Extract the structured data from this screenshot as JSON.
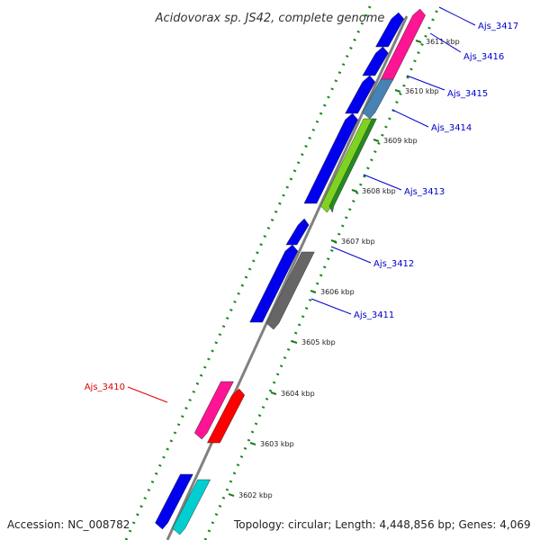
{
  "title": "Acidovorax sp. JS42, complete genome",
  "footer": {
    "accession": "Accession: NC_008782",
    "topology": "Topology: circular; Length: 4,448,856 bp; Genes: 4,069"
  },
  "colors": {
    "backbone": "#808080",
    "dotted_ring": "#1a8a1a",
    "tick": "#1f7a1f",
    "label_blue": "#0000cc",
    "label_red": "#dd0000",
    "leader_blue": "#0000cc",
    "leader_red": "#dd0000"
  },
  "ticks": [
    "3602 kbp",
    "3603 kbp",
    "3604 kbp",
    "3605 kbp",
    "3606 kbp",
    "3607 kbp",
    "3608 kbp",
    "3609 kbp",
    "3610 kbp",
    "3611 kbp"
  ],
  "gene_labels": [
    {
      "name": "Ajs_3417",
      "color": "blue"
    },
    {
      "name": "Ajs_3416",
      "color": "blue"
    },
    {
      "name": "Ajs_3415",
      "color": "blue"
    },
    {
      "name": "Ajs_3414",
      "color": "blue"
    },
    {
      "name": "Ajs_3413",
      "color": "blue"
    },
    {
      "name": "Ajs_3412",
      "color": "blue"
    },
    {
      "name": "Ajs_3411",
      "color": "blue"
    },
    {
      "name": "Ajs_3410",
      "color": "red"
    }
  ],
  "features": [
    {
      "id": "f1",
      "color": "#0000ee"
    },
    {
      "id": "f2",
      "color": "#ff1493"
    },
    {
      "id": "f3",
      "color": "#0000ee"
    },
    {
      "id": "f4",
      "color": "#ff1493"
    },
    {
      "id": "f5",
      "color": "#0000ee"
    },
    {
      "id": "f6",
      "color": "#4682b4"
    },
    {
      "id": "f7",
      "color": "#0000ee"
    },
    {
      "id": "f8",
      "color": "#7ed321"
    },
    {
      "id": "f9",
      "color": "#228b22"
    },
    {
      "id": "f10",
      "color": "#0000ee"
    },
    {
      "id": "f11",
      "color": "#0000ee"
    },
    {
      "id": "f12",
      "color": "#666666"
    },
    {
      "id": "f13",
      "color": "#ff1493"
    },
    {
      "id": "f14",
      "color": "#ff0000"
    },
    {
      "id": "f15",
      "color": "#0000ee"
    },
    {
      "id": "f16",
      "color": "#00ced1"
    }
  ]
}
